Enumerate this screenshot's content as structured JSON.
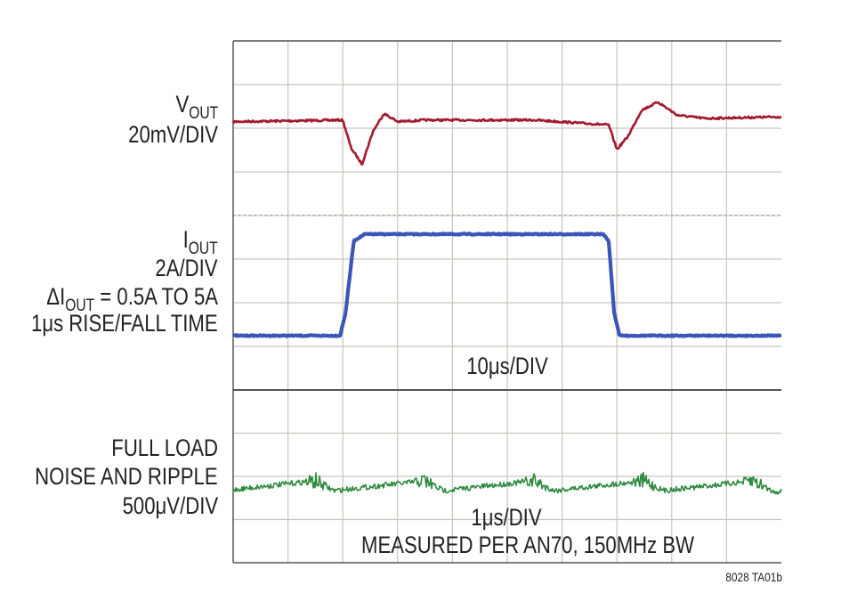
{
  "chart_data": [
    {
      "type": "line",
      "panel": "load-step-vout",
      "label_main": "V",
      "label_sub": "OUT",
      "scale": "20mV/DIV",
      "color": "#a3192f",
      "series": [
        {
          "name": "VOUT",
          "x_div": [
            0,
            2.0,
            2.15,
            2.35,
            2.55,
            2.75,
            3.0,
            3.5,
            5.5,
            6.85,
            7.0,
            7.2,
            7.45,
            7.75,
            8.1,
            8.6,
            10.0
          ],
          "y_div": [
            0.1,
            0.05,
            0.9,
            1.4,
            0.4,
            -0.15,
            0.1,
            0.05,
            0.05,
            0.2,
            0.95,
            0.55,
            -0.25,
            -0.5,
            -0.1,
            0.0,
            -0.05
          ]
        }
      ]
    },
    {
      "type": "line",
      "panel": "load-step-iout",
      "label_main": "I",
      "label_sub": "OUT",
      "scale": "2A/DIV",
      "delta_label": "ΔI",
      "delta_sub": "OUT",
      "delta_text": " = 0.5A TO 5A",
      "rise_fall": "1μs RISE/FALL TIME",
      "timebase": "10μs/DIV",
      "color": "#3a56b8",
      "series": [
        {
          "name": "IOUT",
          "x_div": [
            0,
            1.95,
            2.05,
            2.2,
            2.4,
            6.75,
            6.85,
            6.95,
            7.05,
            10.0
          ],
          "y_amp": [
            0.5,
            0.5,
            1.5,
            4.7,
            5.0,
            5.0,
            4.7,
            1.5,
            0.5,
            0.5
          ]
        }
      ]
    },
    {
      "type": "line",
      "panel": "noise-ripple",
      "label_lines": [
        "FULL LOAD",
        "NOISE AND RIPPLE",
        "500μV/DIV"
      ],
      "timebase": "1μs/DIV",
      "note": "MEASURED PER AN70, 150MHz BW",
      "color": "#2e8b3e",
      "series": [
        {
          "name": "ripple",
          "spike_x_div": [
            1.5,
            3.5,
            5.5,
            7.5,
            9.5
          ]
        }
      ]
    }
  ],
  "figure_id": "8028 TA01b"
}
